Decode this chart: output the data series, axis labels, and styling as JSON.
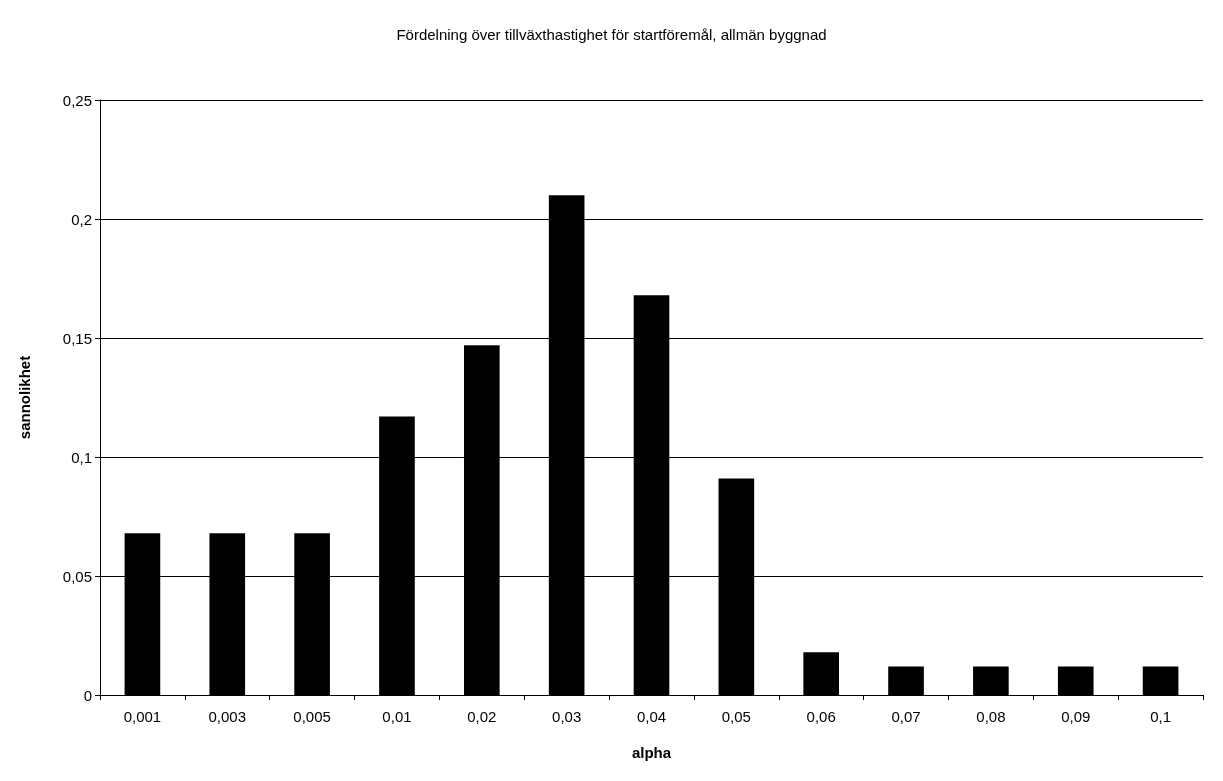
{
  "chart_data": {
    "type": "bar",
    "title": "Fördelning över tillväxthastighet för startföremål, allmän byggnad",
    "xlabel": "alpha",
    "ylabel": "sannolikhet",
    "categories": [
      "0,001",
      "0,003",
      "0,005",
      "0,01",
      "0,02",
      "0,03",
      "0,04",
      "0,05",
      "0,06",
      "0,07",
      "0,08",
      "0,09",
      "0,1"
    ],
    "values": [
      0.068,
      0.068,
      0.068,
      0.117,
      0.147,
      0.21,
      0.168,
      0.091,
      0.018,
      0.012,
      0.012,
      0.012,
      0.012
    ],
    "color": "#000000",
    "ylim": [
      0,
      0.25
    ],
    "yticks": [
      0,
      {
        "value": 0.05,
        "label": "0,05"
      },
      {
        "value": 0.1,
        "label": "0,1"
      },
      {
        "value": 0.15,
        "label": "0,15"
      },
      {
        "value": 0.2,
        "label": "0,2"
      },
      {
        "value": 0.25,
        "label": "0,25"
      }
    ],
    "grid": "y"
  }
}
